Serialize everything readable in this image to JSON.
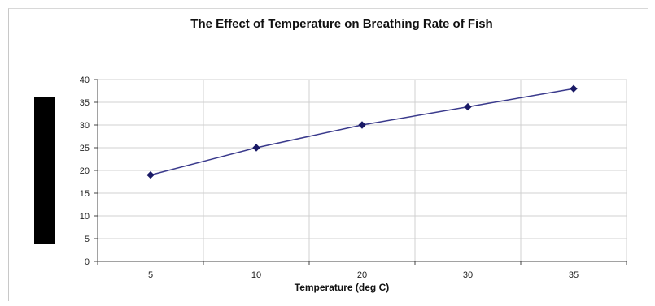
{
  "chart_data": {
    "type": "line",
    "title": "The Effect of Temperature on Breathing Rate of Fish",
    "xlabel": "Temperature (deg C)",
    "ylabel": "",
    "categories": [
      "5",
      "10",
      "20",
      "30",
      "35"
    ],
    "series": [
      {
        "values": [
          19,
          25,
          30,
          34,
          38
        ]
      }
    ],
    "ylim": [
      0,
      40
    ],
    "yticks": [
      "0",
      "5",
      "10",
      "15",
      "20",
      "25",
      "30",
      "35",
      "40"
    ],
    "grid": true,
    "legend": "none",
    "colors": {
      "line": "#3a3a8c",
      "marker": "#1a1a66",
      "grid": "#d0d0d0",
      "axis": "#444444"
    }
  }
}
